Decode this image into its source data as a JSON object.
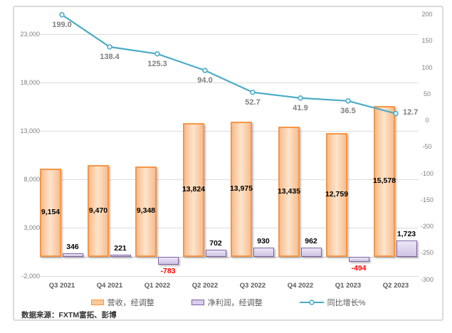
{
  "chart_data": {
    "type": "bar",
    "subtype": "combo-bar-line-dual-axis",
    "categories": [
      "Q3 2021",
      "Q4 2021",
      "Q1 2022",
      "Q2 2022",
      "Q3 2022",
      "Q4 2022",
      "Q1 2023",
      "Q2 2023"
    ],
    "series": [
      {
        "name": "营收，经调整",
        "type": "bar",
        "axis": "left",
        "values": [
          9154,
          9470,
          9348,
          13824,
          13975,
          13435,
          12759,
          15578
        ],
        "labels": [
          "9,154",
          "9,470",
          "9,348",
          "13,824",
          "13,975",
          "13,435",
          "12,759",
          "15,578"
        ],
        "fill": "#fbc998",
        "border": "#f79646"
      },
      {
        "name": "净利润，经调整",
        "type": "bar",
        "axis": "left",
        "values": [
          346,
          221,
          -783,
          702,
          930,
          962,
          -494,
          1723
        ],
        "labels": [
          "346",
          "221",
          "-783",
          "702",
          "930",
          "962",
          "-494",
          "1,723"
        ],
        "fill": "#d9cdea",
        "border": "#8064a2"
      },
      {
        "name": "同比增长%",
        "type": "line",
        "axis": "right",
        "values": [
          199.0,
          138.4,
          125.3,
          94.0,
          52.7,
          41.9,
          36.5,
          12.7
        ],
        "labels": [
          "199.0",
          "138.4",
          "125.3",
          "94.0",
          "52.7",
          "41.9",
          "36.5",
          "12.7"
        ],
        "color": "#4bacc6"
      }
    ],
    "left_axis": {
      "min": -2000,
      "max": 23000,
      "tick_step": 5000,
      "tick_labels": [
        "23,000",
        "18,000",
        "13,000",
        "8,000",
        "3,000",
        "-2,000"
      ],
      "tick_values": [
        23000,
        18000,
        13000,
        8000,
        3000,
        -2000
      ]
    },
    "right_axis": {
      "min": -300,
      "max": 200,
      "tick_step": 50,
      "tick_labels": [
        "200",
        "150",
        "100",
        "50",
        "0",
        "-50",
        "-100",
        "-150",
        "-200",
        "-250",
        "-300"
      ],
      "tick_values": [
        200,
        150,
        100,
        50,
        0,
        -50,
        -100,
        -150,
        -200,
        -250,
        -300
      ]
    },
    "grid": true,
    "legend_position": "bottom",
    "label_colors": {
      "bar_value": "#000000",
      "negative_value": "#ff0000",
      "line_value": "#7f7f7f"
    }
  },
  "footer": {
    "source": "数据来源：FXTM富拓、彭博"
  }
}
